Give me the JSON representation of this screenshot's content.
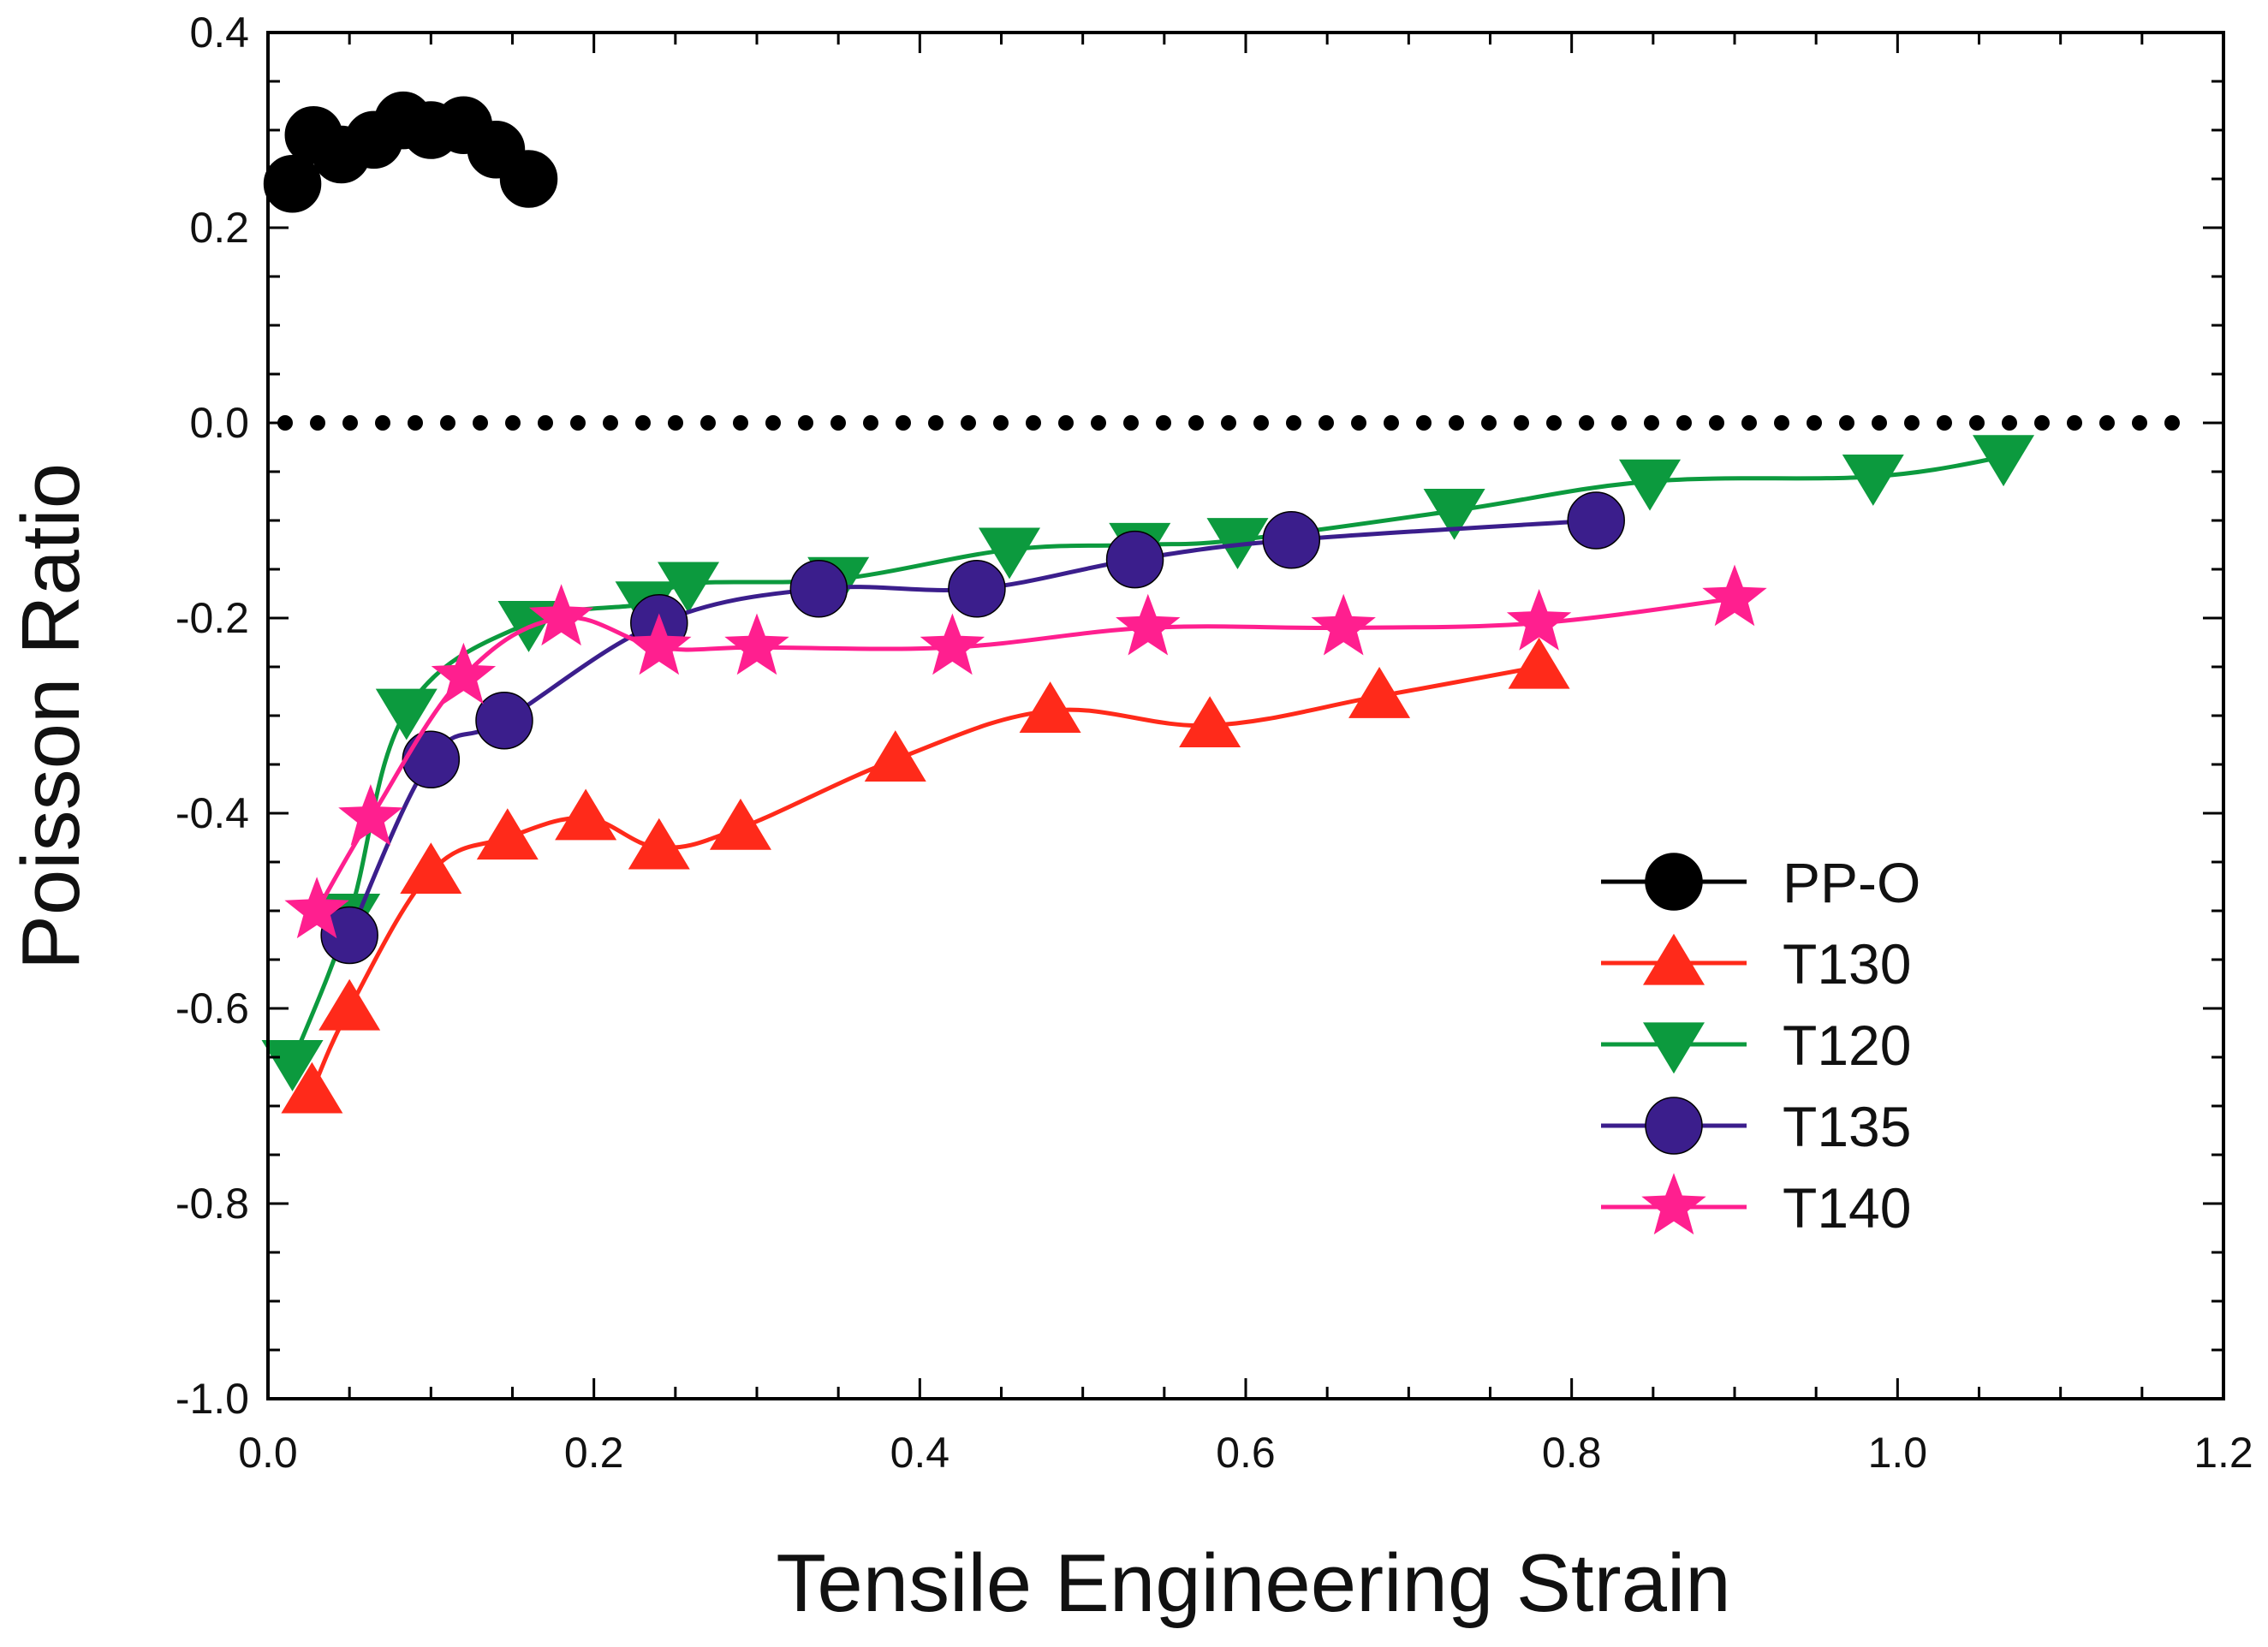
{
  "chart_data": {
    "type": "line",
    "title": "",
    "xlabel": "Tensile Engineering Strain",
    "ylabel": "Poisson Ratio",
    "xlim": [
      0.0,
      1.2
    ],
    "ylim": [
      -1.0,
      0.4
    ],
    "xticks": [
      0.0,
      0.2,
      0.4,
      0.6,
      0.8,
      1.0,
      1.2
    ],
    "xtick_labels": [
      "0.0",
      "0.2",
      "0.4",
      "0.6",
      "0.8",
      "1.0",
      "1.2"
    ],
    "yticks": [
      0.4,
      0.2,
      0.0,
      -0.2,
      -0.4,
      -0.6,
      -0.8,
      -1.0
    ],
    "ytick_labels": [
      "0.4",
      "0.2",
      "0.0",
      "-0.2",
      "-0.4",
      "-0.6",
      "-0.8",
      "-1.0"
    ],
    "grid": false,
    "legend_position": "bottom-right",
    "reference_line": {
      "y": 0.0,
      "style": "dotted",
      "color": "#000000"
    },
    "series": [
      {
        "name": "PP-O",
        "color": "#000000",
        "marker": "circle",
        "connected": false,
        "x": [
          0.015,
          0.028,
          0.045,
          0.065,
          0.083,
          0.1,
          0.12,
          0.14,
          0.16
        ],
        "y": [
          0.245,
          0.295,
          0.275,
          0.29,
          0.31,
          0.3,
          0.305,
          0.28,
          0.25
        ]
      },
      {
        "name": "T130",
        "color": "#ff2a1a",
        "marker": "triangle-up",
        "connected": true,
        "x": [
          0.027,
          0.05,
          0.1,
          0.147,
          0.195,
          0.24,
          0.29,
          0.385,
          0.48,
          0.578,
          0.682,
          0.78
        ],
        "y": [
          -0.685,
          -0.6,
          -0.46,
          -0.425,
          -0.405,
          -0.435,
          -0.415,
          -0.345,
          -0.295,
          -0.31,
          -0.28,
          -0.25
        ]
      },
      {
        "name": "T120",
        "color": "#0c9a3e",
        "marker": "triangle-down",
        "connected": true,
        "x": [
          0.015,
          0.05,
          0.085,
          0.16,
          0.232,
          0.258,
          0.35,
          0.455,
          0.535,
          0.595,
          0.728,
          0.848,
          0.985,
          1.065
        ],
        "y": [
          -0.655,
          -0.505,
          -0.295,
          -0.205,
          -0.185,
          -0.165,
          -0.16,
          -0.13,
          -0.125,
          -0.12,
          -0.09,
          -0.06,
          -0.055,
          -0.035
        ]
      },
      {
        "name": "T135",
        "color": "#3b1e8c",
        "marker": "circle",
        "connected": true,
        "x": [
          0.05,
          0.1,
          0.145,
          0.24,
          0.338,
          0.435,
          0.532,
          0.628,
          0.815
        ],
        "y": [
          -0.525,
          -0.345,
          -0.305,
          -0.205,
          -0.17,
          -0.17,
          -0.14,
          -0.12,
          -0.1
        ]
      },
      {
        "name": "T140",
        "color": "#ff1f8f",
        "marker": "star",
        "connected": true,
        "x": [
          0.03,
          0.063,
          0.12,
          0.18,
          0.24,
          0.3,
          0.42,
          0.54,
          0.66,
          0.78,
          0.9
        ],
        "y": [
          -0.5,
          -0.405,
          -0.26,
          -0.2,
          -0.23,
          -0.23,
          -0.23,
          -0.21,
          -0.21,
          -0.205,
          -0.18
        ]
      }
    ]
  }
}
